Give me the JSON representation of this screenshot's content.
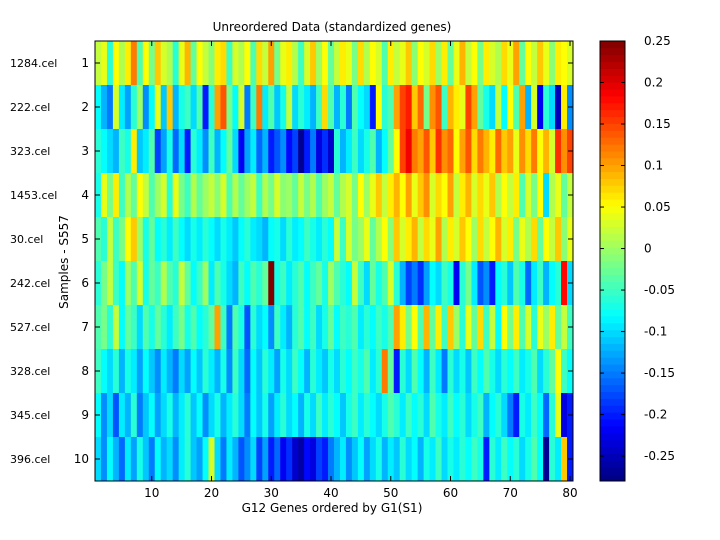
{
  "chart_data": {
    "type": "heatmap",
    "title": "Unreordered Data (standardized genes)",
    "xlabel": "G12 Genes ordered by G1(S1)",
    "ylabel": "Samples - S557",
    "x_range": [
      1,
      80
    ],
    "x_ticks": [
      10,
      20,
      30,
      40,
      50,
      60,
      70,
      80
    ],
    "rows": [
      {
        "index": 1,
        "sample": "1284.cel",
        "values": [
          0.02,
          0.04,
          -0.06,
          0.05,
          0.01,
          0.06,
          0.12,
          -0.04,
          0.05,
          -0.02,
          0.08,
          0.03,
          0.01,
          -0.06,
          0.04,
          0.09,
          -0.03,
          0.05,
          0.02,
          -0.01,
          0.06,
          0.07,
          -0.05,
          0.03,
          0.01,
          0.05,
          -0.04,
          0.07,
          0.02,
          0.1,
          -0.02,
          0.04,
          0.06,
          0.01,
          -0.05,
          0.03,
          0.08,
          0.0,
          0.05,
          -0.03,
          0.02,
          0.06,
          0.04,
          -0.02,
          0.07,
          0.01,
          0.05,
          0.03,
          -0.04,
          0.06,
          0.02,
          0.04,
          0.08,
          -0.01,
          0.05,
          0.03,
          0.07,
          0.0,
          0.06,
          -0.03,
          0.04,
          0.09,
          0.02,
          0.05,
          -0.02,
          0.06,
          0.03,
          0.01,
          0.07,
          0.04,
          0.1,
          -0.03,
          0.05,
          0.02,
          0.08,
          0.04,
          -0.01,
          0.06,
          0.05,
          0.03
        ]
      },
      {
        "index": 2,
        "sample": "222.cel",
        "values": [
          -0.08,
          -0.12,
          -0.15,
          0.03,
          -0.09,
          -0.13,
          -0.06,
          0.0,
          -0.14,
          -0.08,
          0.04,
          -0.11,
          0.08,
          -0.12,
          -0.07,
          -0.05,
          -0.1,
          -0.04,
          -0.2,
          -0.06,
          0.1,
          0.14,
          -0.02,
          -0.08,
          0.03,
          -0.15,
          -0.05,
          0.12,
          -0.09,
          -0.04,
          -0.11,
          -0.07,
          0.02,
          -0.1,
          -0.06,
          -0.09,
          -0.12,
          -0.05,
          0.07,
          -0.04,
          -0.12,
          -0.06,
          -0.15,
          -0.04,
          -0.08,
          -0.1,
          -0.2,
          0.05,
          -0.06,
          -0.04,
          0.1,
          0.15,
          0.17,
          0.08,
          0.13,
          -0.02,
          0.11,
          0.14,
          -0.05,
          0.09,
          0.06,
          0.04,
          0.15,
          0.1,
          -0.03,
          -0.07,
          -0.1,
          0.02,
          -0.08,
          0.05,
          -0.04,
          0.1,
          -0.12,
          0.03,
          -0.22,
          -0.06,
          -0.1,
          -0.25,
          0.06,
          -0.14
        ]
      },
      {
        "index": 3,
        "sample": "323.cel",
        "values": [
          -0.06,
          -0.08,
          -0.1,
          -0.12,
          -0.05,
          -0.07,
          0.06,
          -0.11,
          -0.09,
          -0.04,
          -0.18,
          -0.13,
          -0.07,
          -0.16,
          -0.1,
          -0.2,
          -0.06,
          -0.09,
          -0.14,
          -0.05,
          -0.12,
          -0.08,
          -0.03,
          -0.1,
          -0.22,
          -0.13,
          -0.09,
          -0.16,
          -0.12,
          -0.2,
          -0.17,
          -0.14,
          -0.21,
          -0.18,
          -0.27,
          -0.2,
          -0.15,
          -0.23,
          -0.19,
          -0.24,
          -0.06,
          -0.12,
          -0.09,
          -0.05,
          -0.1,
          -0.07,
          -0.04,
          -0.12,
          -0.08,
          -0.03,
          0.05,
          0.15,
          0.19,
          0.12,
          0.1,
          0.14,
          0.08,
          0.16,
          0.11,
          0.13,
          0.05,
          0.1,
          0.14,
          0.07,
          0.12,
          0.09,
          0.06,
          0.13,
          0.08,
          0.1,
          0.04,
          0.11,
          0.07,
          0.12,
          0.05,
          0.09,
          0.03,
          0.16,
          0.11,
          0.15
        ]
      },
      {
        "index": 4,
        "sample": "1453.cel",
        "values": [
          -0.07,
          0.04,
          -0.02,
          0.06,
          -0.05,
          0.01,
          -0.03,
          0.05,
          0.02,
          -0.04,
          0.0,
          0.03,
          -0.06,
          0.04,
          -0.02,
          -0.05,
          0.01,
          -0.03,
          0.0,
          0.02,
          -0.01,
          0.03,
          -0.04,
          0.01,
          -0.03,
          0.0,
          0.02,
          -0.05,
          0.01,
          -0.02,
          0.03,
          -0.01,
          0.0,
          -0.03,
          0.02,
          -0.02,
          0.01,
          -0.04,
          0.0,
          0.02,
          -0.03,
          0.01,
          0.03,
          -0.02,
          0.05,
          0.0,
          0.04,
          0.08,
          0.02,
          0.06,
          0.09,
          0.05,
          0.1,
          0.04,
          0.08,
          0.11,
          0.03,
          0.07,
          0.05,
          0.1,
          0.02,
          0.06,
          0.09,
          0.03,
          0.07,
          0.04,
          0.08,
          0.01,
          0.05,
          0.02,
          0.06,
          -0.04,
          0.03,
          -0.02,
          0.05,
          -0.1,
          0.01,
          0.04,
          -0.03,
          0.02
        ]
      },
      {
        "index": 5,
        "sample": "30.cel",
        "values": [
          -0.04,
          -0.06,
          0.02,
          -0.05,
          -0.02,
          0.05,
          0.08,
          0.0,
          -0.07,
          -0.03,
          -0.08,
          -0.06,
          -0.09,
          -0.05,
          -0.08,
          -0.1,
          -0.07,
          -0.09,
          -0.06,
          -0.08,
          -0.1,
          -0.07,
          -0.09,
          -0.11,
          -0.08,
          -0.06,
          -0.09,
          -0.1,
          -0.12,
          -0.08,
          -0.07,
          -0.1,
          -0.06,
          -0.09,
          -0.08,
          -0.05,
          -0.07,
          -0.09,
          -0.06,
          -0.08,
          0.02,
          -0.05,
          0.03,
          -0.02,
          0.0,
          0.04,
          -0.03,
          0.01,
          0.05,
          -0.01,
          0.08,
          0.03,
          0.06,
          0.09,
          0.02,
          0.07,
          0.04,
          0.1,
          0.01,
          0.06,
          0.03,
          0.08,
          0.05,
          0.0,
          0.07,
          0.02,
          0.05,
          0.09,
          0.03,
          0.06,
          -0.02,
          0.04,
          0.01,
          0.07,
          -0.03,
          0.05,
          0.02,
          0.08,
          -0.01,
          0.04
        ]
      },
      {
        "index": 6,
        "sample": "242.cel",
        "values": [
          -0.06,
          -0.02,
          0.02,
          -0.05,
          -0.08,
          0.0,
          -0.04,
          0.03,
          -0.07,
          -0.03,
          -0.05,
          0.01,
          -0.04,
          -0.06,
          0.02,
          -0.03,
          -0.08,
          -0.05,
          0.0,
          -0.09,
          -0.04,
          -0.07,
          -0.1,
          -0.12,
          -0.05,
          -0.08,
          -0.04,
          -0.06,
          -0.03,
          0.26,
          -0.07,
          -0.05,
          -0.09,
          -0.06,
          -0.04,
          -0.08,
          -0.05,
          -0.03,
          -0.07,
          0.0,
          -0.04,
          -0.06,
          -0.08,
          0.02,
          -0.05,
          -0.1,
          -0.03,
          -0.07,
          -0.04,
          0.03,
          -0.06,
          -0.12,
          -0.18,
          -0.15,
          -0.19,
          -0.13,
          -0.08,
          -0.1,
          -0.05,
          -0.07,
          -0.22,
          -0.06,
          -0.02,
          -0.09,
          -0.17,
          -0.14,
          -0.2,
          -0.08,
          -0.06,
          -0.11,
          -0.04,
          -0.07,
          -0.16,
          -0.09,
          -0.05,
          -0.12,
          -0.08,
          -0.06,
          0.18,
          -0.1
        ]
      },
      {
        "index": 7,
        "sample": "527.cel",
        "values": [
          -0.04,
          -0.02,
          -0.06,
          0.02,
          -0.08,
          -0.03,
          -0.05,
          -0.1,
          -0.04,
          -0.07,
          -0.03,
          -0.06,
          -0.09,
          -0.05,
          -0.02,
          -0.07,
          -0.04,
          -0.08,
          -0.06,
          -0.03,
          0.1,
          -0.05,
          -0.15,
          -0.04,
          -0.07,
          -0.17,
          -0.06,
          -0.1,
          -0.08,
          -0.14,
          -0.05,
          -0.09,
          -0.12,
          -0.06,
          -0.04,
          -0.08,
          -0.05,
          -0.1,
          -0.07,
          -0.03,
          -0.08,
          -0.05,
          -0.06,
          -0.04,
          -0.09,
          -0.06,
          -0.08,
          -0.05,
          -0.07,
          -0.04,
          0.1,
          0.06,
          -0.02,
          0.05,
          -0.04,
          0.09,
          -0.03,
          0.06,
          -0.05,
          0.08,
          0.0,
          -0.06,
          0.04,
          -0.03,
          0.07,
          -0.05,
          0.02,
          -0.08,
          0.05,
          -0.02,
          0.06,
          -0.04,
          0.03,
          -0.06,
          0.04,
          0.0,
          0.06,
          -0.03,
          0.02,
          -0.05
        ]
      },
      {
        "index": 8,
        "sample": "328.cel",
        "values": [
          -0.05,
          -0.08,
          -0.1,
          -0.06,
          -0.12,
          -0.07,
          -0.09,
          -0.13,
          -0.08,
          -0.11,
          -0.14,
          -0.09,
          -0.12,
          -0.15,
          -0.1,
          -0.13,
          -0.08,
          -0.11,
          -0.06,
          -0.09,
          -0.12,
          -0.07,
          -0.14,
          -0.05,
          -0.1,
          -0.16,
          -0.08,
          -0.11,
          -0.06,
          -0.09,
          -0.13,
          -0.07,
          -0.1,
          -0.05,
          -0.08,
          -0.12,
          -0.06,
          -0.09,
          -0.11,
          -0.07,
          -0.1,
          -0.06,
          -0.08,
          -0.05,
          -0.07,
          -0.04,
          -0.09,
          -0.06,
          0.12,
          -0.03,
          -0.2,
          -0.06,
          -0.1,
          -0.04,
          -0.08,
          -0.12,
          -0.05,
          -0.09,
          -0.15,
          -0.06,
          -0.1,
          -0.07,
          -0.11,
          -0.05,
          -0.08,
          -0.04,
          -0.07,
          -0.1,
          -0.06,
          -0.08,
          -0.05,
          -0.09,
          -0.07,
          -0.04,
          -0.1,
          -0.06,
          -0.03,
          0.05,
          -0.05,
          -0.08
        ]
      },
      {
        "index": 9,
        "sample": "345.cel",
        "values": [
          -0.08,
          -0.14,
          -0.1,
          -0.17,
          -0.09,
          -0.12,
          -0.06,
          -0.15,
          -0.11,
          -0.08,
          -0.13,
          -0.1,
          -0.07,
          -0.12,
          -0.09,
          -0.06,
          -0.11,
          -0.08,
          -0.14,
          -0.1,
          -0.07,
          -0.12,
          -0.09,
          -0.06,
          -0.1,
          -0.15,
          -0.08,
          -0.11,
          -0.07,
          -0.13,
          -0.09,
          -0.06,
          -0.1,
          -0.08,
          -0.12,
          -0.07,
          -0.1,
          -0.05,
          -0.09,
          -0.06,
          -0.08,
          -0.11,
          -0.07,
          -0.05,
          -0.09,
          -0.06,
          -0.08,
          -0.1,
          -0.07,
          -0.04,
          -0.06,
          -0.09,
          -0.05,
          -0.08,
          -0.06,
          -0.1,
          -0.04,
          -0.07,
          -0.09,
          -0.05,
          -0.08,
          -0.06,
          -0.1,
          -0.07,
          -0.05,
          -0.12,
          -0.08,
          -0.06,
          -0.1,
          -0.15,
          -0.2,
          -0.07,
          -0.09,
          -0.05,
          -0.08,
          -0.16,
          -0.06,
          0.04,
          -0.23,
          -0.2
        ]
      },
      {
        "index": 10,
        "sample": "396.cel",
        "values": [
          -0.1,
          -0.14,
          -0.08,
          -0.12,
          -0.16,
          -0.09,
          -0.13,
          -0.07,
          -0.11,
          -0.15,
          -0.08,
          -0.12,
          -0.1,
          -0.14,
          -0.09,
          -0.06,
          -0.11,
          -0.13,
          -0.08,
          0.03,
          -0.1,
          -0.15,
          -0.09,
          -0.12,
          -0.17,
          -0.14,
          -0.1,
          -0.18,
          -0.13,
          -0.2,
          -0.16,
          -0.22,
          -0.19,
          -0.24,
          -0.26,
          -0.21,
          -0.23,
          -0.18,
          -0.2,
          -0.15,
          -0.12,
          -0.09,
          -0.14,
          -0.11,
          -0.08,
          -0.13,
          -0.1,
          -0.07,
          -0.12,
          -0.09,
          -0.11,
          -0.06,
          -0.1,
          -0.08,
          -0.12,
          -0.07,
          -0.09,
          -0.05,
          -0.1,
          -0.07,
          -0.09,
          -0.06,
          -0.08,
          -0.05,
          -0.07,
          -0.2,
          -0.06,
          -0.09,
          -0.05,
          -0.08,
          -0.06,
          -0.1,
          -0.07,
          -0.04,
          -0.08,
          -0.27,
          -0.06,
          -0.09,
          0.08,
          -0.2
        ]
      }
    ],
    "colorbar": {
      "range": [
        -0.28,
        0.25
      ],
      "ticks": [
        {
          "value": 0.25,
          "label": "0.25"
        },
        {
          "value": 0.2,
          "label": "0.2"
        },
        {
          "value": 0.15,
          "label": "0.15"
        },
        {
          "value": 0.1,
          "label": "0.1"
        },
        {
          "value": 0.05,
          "label": "0.05"
        },
        {
          "value": 0,
          "label": "0"
        },
        {
          "value": -0.05,
          "label": "-0.05"
        },
        {
          "value": -0.1,
          "label": "-0.1"
        },
        {
          "value": -0.15,
          "label": "-0.15"
        },
        {
          "value": -0.2,
          "label": "-0.2"
        },
        {
          "value": -0.25,
          "label": "-0.25"
        }
      ],
      "colormap": "jet"
    }
  }
}
